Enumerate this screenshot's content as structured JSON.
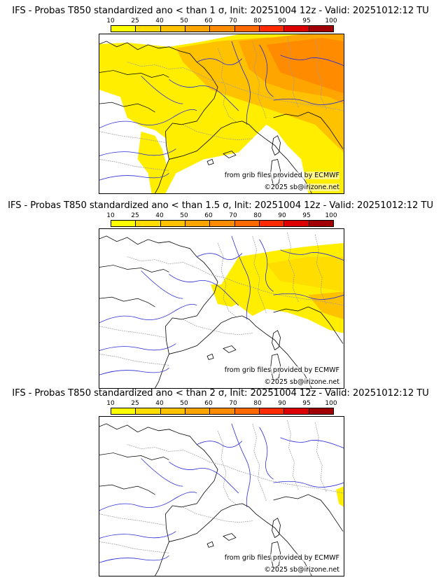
{
  "colorbar": {
    "levels": [
      "10",
      "25",
      "40",
      "50",
      "60",
      "70",
      "80",
      "90",
      "95",
      "100"
    ],
    "colors": [
      "#ffff00",
      "#ffdd00",
      "#ffc200",
      "#ffa500",
      "#ff8c00",
      "#ff6a00",
      "#ff2a00",
      "#dd0000",
      "#a00000",
      "#500000"
    ]
  },
  "map_colors": {
    "land_line": "#9a9a9a",
    "river": "#2a2ad8",
    "coast": "#000000"
  },
  "credits": {
    "source": "from grib files provided by ECMWF",
    "copyright": "©2025 sb@irizone.net"
  },
  "panels": [
    {
      "title": "IFS - Probas T850  standardized ano < than 1 σ, Init: 20251004 12z - Valid: 20251012:12 TU",
      "threshold_sigma": 1,
      "probability_coverage": "high"
    },
    {
      "title": "IFS - Probas T850  standardized ano < than 1.5 σ, Init: 20251004 12z - Valid: 20251012:12 TU",
      "threshold_sigma": 1.5,
      "probability_coverage": "medium"
    },
    {
      "title": "IFS - Probas T850  standardized ano < than 2 σ, Init: 20251004 12z - Valid: 20251012:12 TU",
      "threshold_sigma": 2,
      "probability_coverage": "minimal"
    }
  ]
}
